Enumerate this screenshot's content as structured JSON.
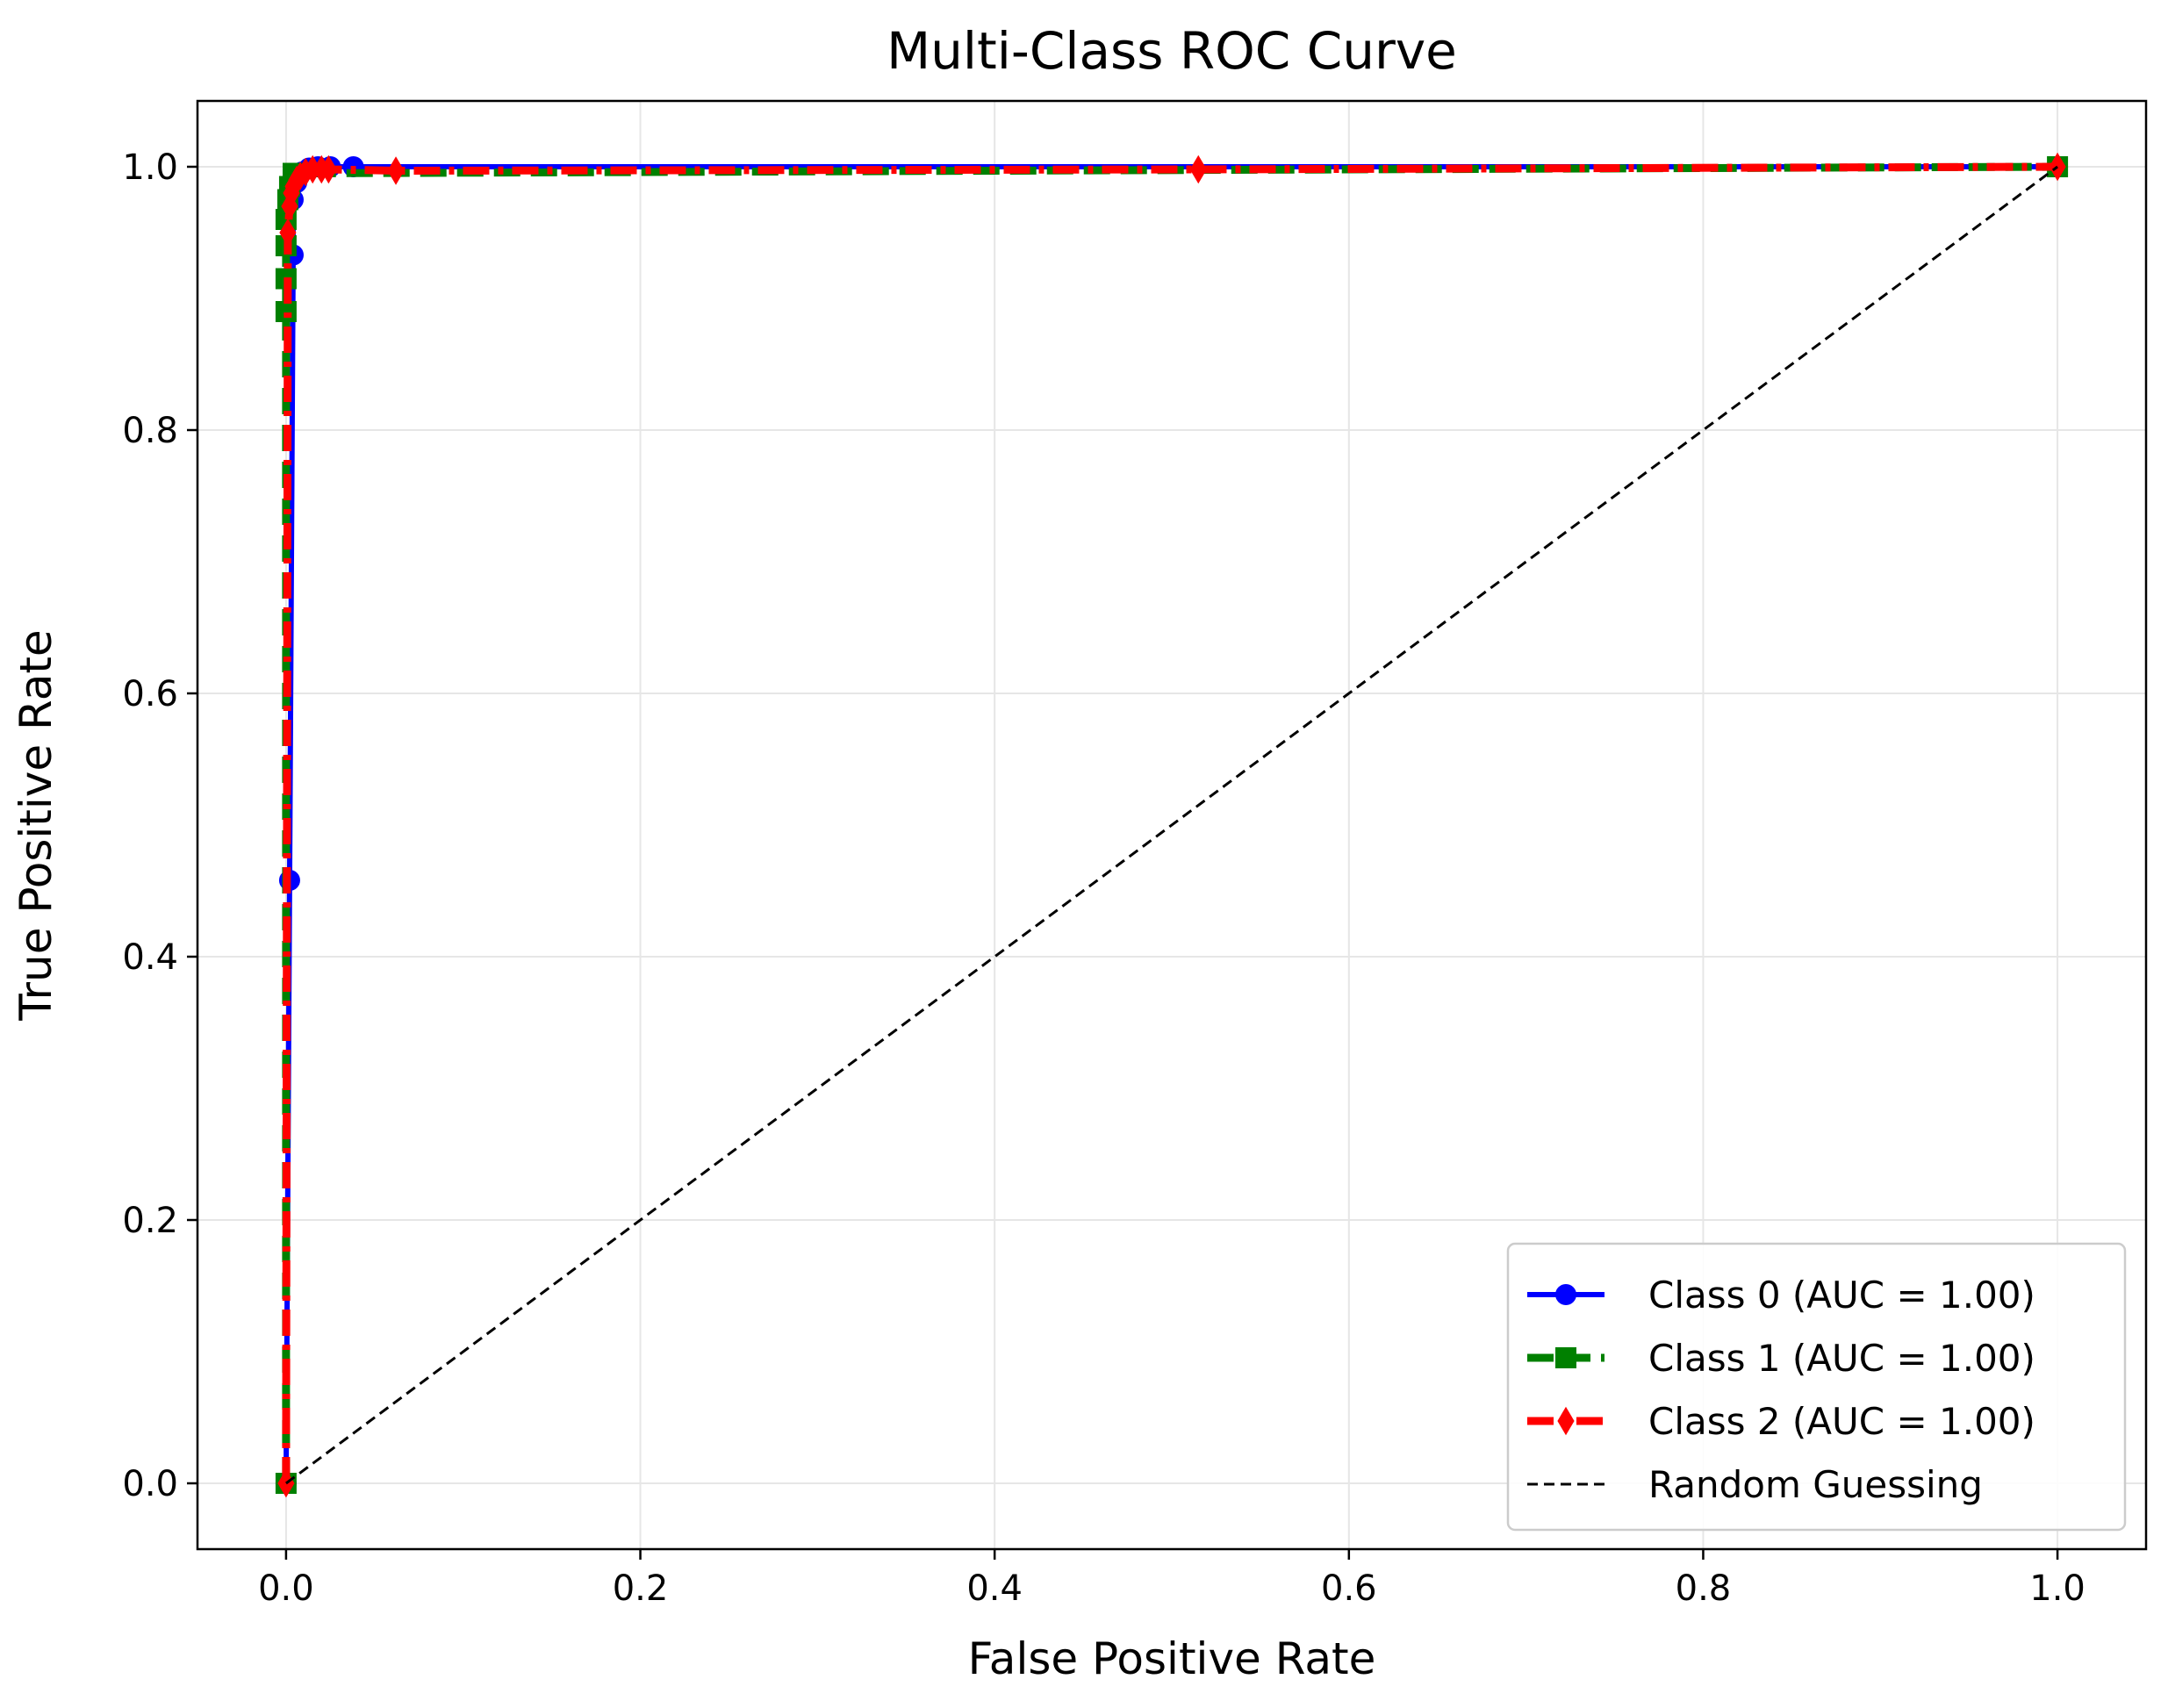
{
  "chart_data": {
    "type": "line",
    "title": "Multi-Class ROC Curve",
    "xlabel": "False Positive Rate",
    "ylabel": "True Positive Rate",
    "xlim": [
      -0.05,
      1.05
    ],
    "ylim": [
      -0.05,
      1.05
    ],
    "grid": true,
    "legend_position": "lower-right",
    "x_ticks": [
      0.0,
      0.2,
      0.4,
      0.6,
      0.8,
      1.0
    ],
    "y_ticks": [
      0.0,
      0.2,
      0.4,
      0.6,
      0.8,
      1.0
    ],
    "x_tick_labels": [
      "0.0",
      "0.2",
      "0.4",
      "0.6",
      "0.8",
      "1.0"
    ],
    "y_tick_labels": [
      "0.0",
      "0.2",
      "0.4",
      "0.6",
      "0.8",
      "1.0"
    ],
    "series": [
      {
        "name": "Class 0 (AUC = 1.00)",
        "color": "#0000ff",
        "marker": "circle",
        "line_style": "solid",
        "x": [
          0.0,
          0.002,
          0.004,
          0.004,
          0.006,
          0.009,
          0.013,
          0.018,
          0.025,
          0.038,
          1.0
        ],
        "y": [
          0.0,
          0.458,
          0.933,
          0.975,
          0.988,
          0.996,
          0.999,
          1.0,
          1.0,
          1.0,
          1.0
        ]
      },
      {
        "name": "Class 1 (AUC = 1.00)",
        "color": "#008000",
        "marker": "square",
        "line_style": "dashed",
        "x": [
          0.0,
          0.0,
          0.0,
          0.0,
          0.0,
          0.001,
          0.002,
          0.004,
          1.0
        ],
        "y": [
          0.0,
          0.89,
          0.915,
          0.94,
          0.96,
          0.975,
          0.985,
          0.995,
          1.0
        ]
      },
      {
        "name": "Class 2 (AUC = 1.00)",
        "color": "#ff0000",
        "marker": "diamond",
        "line_style": "dashdot",
        "x": [
          0.0,
          0.001,
          0.002,
          0.003,
          0.004,
          0.006,
          0.008,
          0.011,
          0.015,
          0.02,
          0.024,
          0.062,
          0.515,
          1.0
        ],
        "y": [
          0.0,
          0.95,
          0.97,
          0.98,
          0.985,
          0.99,
          0.993,
          0.996,
          0.998,
          0.998,
          0.998,
          0.997,
          0.998,
          1.0
        ]
      },
      {
        "name": "Random Guessing",
        "color": "#000000",
        "marker": "none",
        "line_style": "dashed",
        "x": [
          0.0,
          1.0
        ],
        "y": [
          0.0,
          1.0
        ]
      }
    ]
  }
}
